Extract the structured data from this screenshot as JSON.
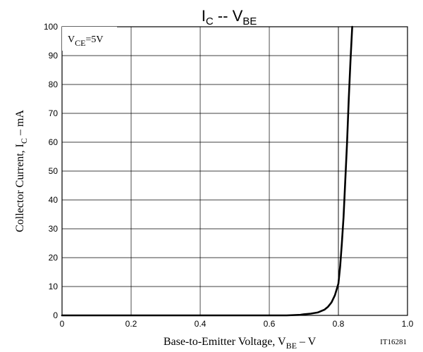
{
  "chart_data": {
    "type": "line",
    "title": {
      "main": "I",
      "sub": "C",
      "sep": " -- ",
      "main2": "V",
      "sub2": "BE"
    },
    "xlabel": {
      "pre": "Base-to-Emitter Voltage, V",
      "sub": "BE",
      "post": " – V"
    },
    "ylabel": {
      "pre": "Collector Current, I",
      "sub": "C",
      "post": " – mA"
    },
    "annotation": {
      "pre": "V",
      "sub": "CE",
      "post": "=5V"
    },
    "figure_code": "IT16281",
    "xlim": [
      0,
      1.0
    ],
    "ylim": [
      0,
      100
    ],
    "x_ticks": [
      0,
      0.2,
      0.4,
      0.6,
      0.8,
      1.0
    ],
    "x_tick_labels": [
      "0",
      "0.2",
      "0.4",
      "0.6",
      "0.8",
      "1.0"
    ],
    "y_ticks": [
      0,
      10,
      20,
      30,
      40,
      50,
      60,
      70,
      80,
      90,
      100
    ],
    "y_tick_labels": [
      "0",
      "10",
      "20",
      "30",
      "40",
      "50",
      "60",
      "70",
      "80",
      "90",
      "100"
    ],
    "x_minor_gridlines": [
      0.8
    ],
    "grid": true,
    "series": [
      {
        "color": "#000000",
        "x": [
          0.0,
          0.5,
          0.65,
          0.69,
          0.7,
          0.72,
          0.74,
          0.76,
          0.77,
          0.78,
          0.79,
          0.8,
          0.805,
          0.81,
          0.815,
          0.82,
          0.825,
          0.83,
          0.835,
          0.84
        ],
        "y": [
          0,
          0,
          0,
          0.2,
          0.4,
          0.6,
          1,
          2,
          3,
          4.5,
          7,
          11,
          17,
          25,
          34,
          47,
          60,
          75,
          88,
          100
        ]
      }
    ]
  }
}
